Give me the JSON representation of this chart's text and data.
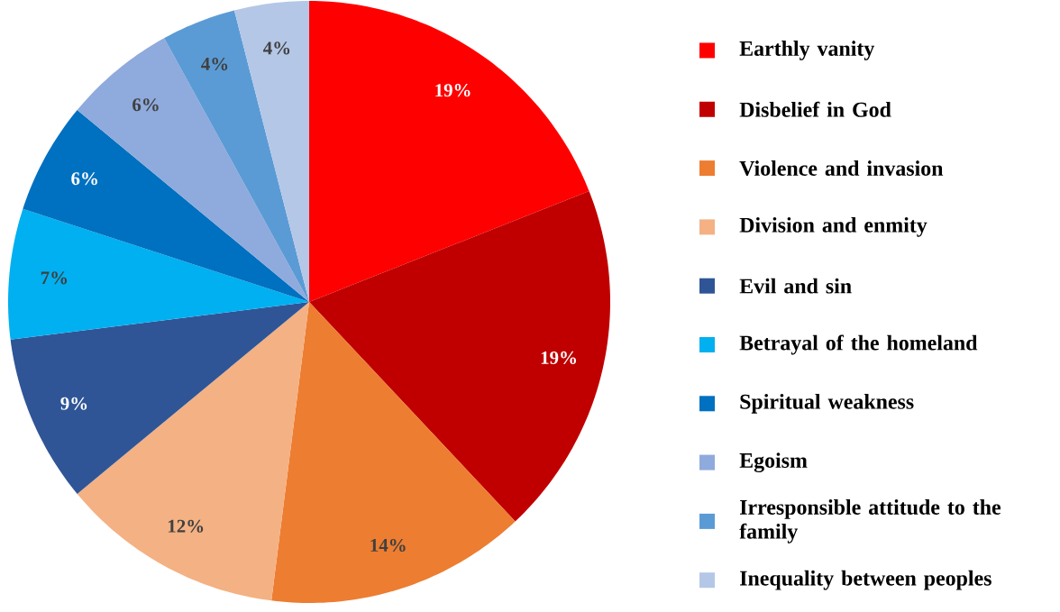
{
  "chart_data": {
    "type": "pie",
    "categories": [
      "Earthly vanity",
      "Disbelief in God",
      "Violence and invasion",
      "Division and enmity",
      "Evil and sin",
      "Betrayal of the homeland",
      "Spiritual weakness",
      "Egoism",
      "Irresponsible attitude to the family",
      "Inequality between peoples"
    ],
    "values": [
      19,
      19,
      14,
      12,
      9,
      7,
      6,
      6,
      4,
      4
    ],
    "colors": [
      "#ff0000",
      "#c00000",
      "#ed7d31",
      "#f4b183",
      "#2f5597",
      "#00b0f0",
      "#0070c0",
      "#8faadc",
      "#5b9bd5",
      "#b4c7e7"
    ],
    "value_labels": [
      "19%",
      "19%",
      "14%",
      "12%",
      "9%",
      "7%",
      "6%",
      "6%",
      "4%",
      "4%"
    ],
    "legend": "right"
  }
}
